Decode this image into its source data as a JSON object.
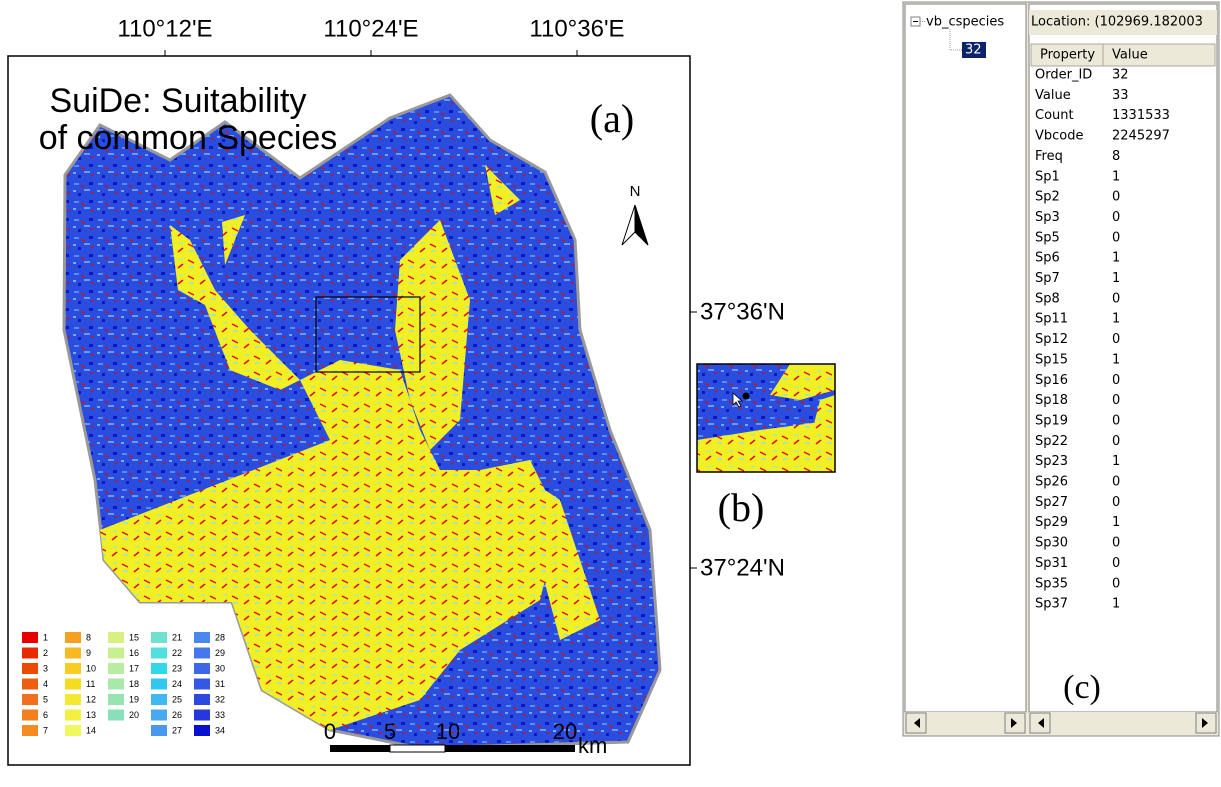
{
  "map": {
    "title": [
      "SuiDe: Suitability",
      "of common Species"
    ],
    "panel_label": "(a)",
    "longitude_labels": [
      "110°12'E",
      "110°24'E",
      "110°36'E"
    ],
    "latitude_labels": [
      "37°36'N",
      "37°24'N"
    ],
    "north": "N",
    "scale_bar": {
      "ticks": [
        "0",
        "5",
        "10",
        "20"
      ],
      "unit": "km"
    },
    "legend": [
      {
        "label": "1",
        "color": "#e60000"
      },
      {
        "label": "2",
        "color": "#e82a00"
      },
      {
        "label": "3",
        "color": "#ec4a00"
      },
      {
        "label": "4",
        "color": "#ee5e10"
      },
      {
        "label": "5",
        "color": "#f07020"
      },
      {
        "label": "6",
        "color": "#f28020"
      },
      {
        "label": "7",
        "color": "#f48c20"
      },
      {
        "label": "8",
        "color": "#f5a020"
      },
      {
        "label": "9",
        "color": "#f7b820"
      },
      {
        "label": "10",
        "color": "#f8cc20"
      },
      {
        "label": "11",
        "color": "#f6dc20"
      },
      {
        "label": "12",
        "color": "#f4e830"
      },
      {
        "label": "13",
        "color": "#f2f040"
      },
      {
        "label": "14",
        "color": "#f0f860"
      },
      {
        "label": "15",
        "color": "#d8f080"
      },
      {
        "label": "16",
        "color": "#c8f090"
      },
      {
        "label": "17",
        "color": "#b8eca0"
      },
      {
        "label": "18",
        "color": "#a8e8a8"
      },
      {
        "label": "19",
        "color": "#98e4b0"
      },
      {
        "label": "20",
        "color": "#88e0b8"
      },
      {
        "label": "21",
        "color": "#70e0d0"
      },
      {
        "label": "22",
        "color": "#50e0e0"
      },
      {
        "label": "23",
        "color": "#30d8e8"
      },
      {
        "label": "24",
        "color": "#30c8f0"
      },
      {
        "label": "25",
        "color": "#40b8f0"
      },
      {
        "label": "26",
        "color": "#48a8f0"
      },
      {
        "label": "27",
        "color": "#4898f0"
      },
      {
        "label": "28",
        "color": "#4a88f0"
      },
      {
        "label": "29",
        "color": "#4478ec"
      },
      {
        "label": "30",
        "color": "#3c68e8"
      },
      {
        "label": "31",
        "color": "#3458e4"
      },
      {
        "label": "32",
        "color": "#2c48e0"
      },
      {
        "label": "33",
        "color": "#2438dc"
      },
      {
        "label": "34",
        "color": "#0a10d0"
      }
    ]
  },
  "inset": {
    "panel_label": "(b)"
  },
  "identify": {
    "tree": {
      "root": "vb_cspecies",
      "child": "32"
    },
    "location": "Location: (102969.182003",
    "columns": [
      "Property",
      "Value"
    ],
    "rows": [
      [
        "Order_ID",
        "32"
      ],
      [
        "Value",
        "33"
      ],
      [
        "Count",
        "1331533"
      ],
      [
        "Vbcode",
        "2245297"
      ],
      [
        "Freq",
        "8"
      ],
      [
        "Sp1",
        "1"
      ],
      [
        "Sp2",
        "0"
      ],
      [
        "Sp3",
        "0"
      ],
      [
        "Sp5",
        "0"
      ],
      [
        "Sp6",
        "1"
      ],
      [
        "Sp7",
        "1"
      ],
      [
        "Sp8",
        "0"
      ],
      [
        "Sp11",
        "1"
      ],
      [
        "Sp12",
        "0"
      ],
      [
        "Sp15",
        "1"
      ],
      [
        "Sp16",
        "0"
      ],
      [
        "Sp18",
        "0"
      ],
      [
        "Sp19",
        "0"
      ],
      [
        "Sp22",
        "0"
      ],
      [
        "Sp23",
        "1"
      ],
      [
        "Sp26",
        "0"
      ],
      [
        "Sp27",
        "0"
      ],
      [
        "Sp29",
        "1"
      ],
      [
        "Sp30",
        "0"
      ],
      [
        "Sp31",
        "0"
      ],
      [
        "Sp35",
        "0"
      ],
      [
        "Sp37",
        "1"
      ]
    ],
    "panel_label": "(c)"
  }
}
